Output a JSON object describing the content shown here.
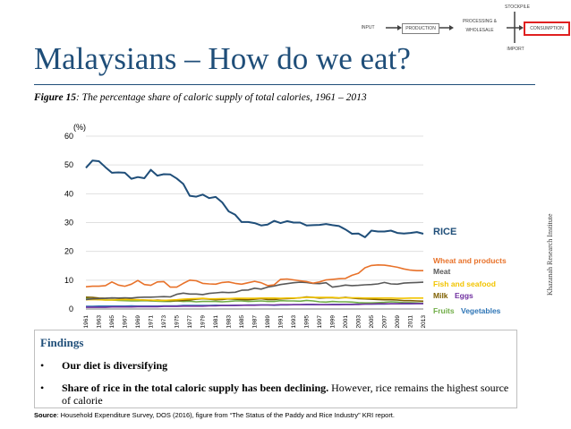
{
  "page": {
    "title": "Malaysians – How do we eat?",
    "figure_label": "Figure 15",
    "figure_caption": ": The percentage share of caloric supply of total calories, 1961 – 2013"
  },
  "flow": {
    "stockpile": "STOCKPILE",
    "input": "INPUT",
    "production": "PRODUCTION",
    "processing": "PROCESSING &",
    "wholesale": "WHOLESALE",
    "consumption": "CONSUMPTION",
    "import": "IMPORT",
    "highlight_color": "#e02020"
  },
  "chart_data": {
    "type": "line",
    "ylabel": "(%)",
    "ylim": [
      0,
      60
    ],
    "yticks": [
      0,
      10,
      20,
      30,
      40,
      50,
      60
    ],
    "xlim": [
      1961,
      2013
    ],
    "xticks": [
      1961,
      1963,
      1965,
      1967,
      1969,
      1971,
      1973,
      1975,
      1977,
      1979,
      1981,
      1983,
      1985,
      1987,
      1989,
      1991,
      1993,
      1995,
      1997,
      1999,
      2001,
      2003,
      2005,
      2007,
      2009,
      2011,
      2013
    ],
    "x": [
      1961,
      1962,
      1963,
      1964,
      1965,
      1966,
      1967,
      1968,
      1969,
      1970,
      1971,
      1972,
      1973,
      1974,
      1975,
      1976,
      1977,
      1978,
      1979,
      1980,
      1981,
      1982,
      1983,
      1984,
      1985,
      1986,
      1987,
      1988,
      1989,
      1990,
      1991,
      1992,
      1993,
      1994,
      1995,
      1996,
      1997,
      1998,
      1999,
      2000,
      2001,
      2002,
      2003,
      2004,
      2005,
      2006,
      2007,
      2008,
      2009,
      2010,
      2011,
      2012,
      2013
    ],
    "series": [
      {
        "name": "RICE",
        "color": "#1f4e79",
        "values": [
          49,
          51.5,
          51.3,
          49.2,
          47.3,
          47.4,
          47.3,
          45.2,
          45.8,
          45.4,
          48.3,
          46.3,
          46.8,
          46.7,
          45.3,
          43.4,
          39.3,
          39,
          39.7,
          38.5,
          38.9,
          37,
          33.9,
          32.7,
          30.2,
          30.2,
          29.8,
          29,
          29.3,
          30.6,
          29.8,
          30.5,
          30,
          30,
          29,
          29.1,
          29.2,
          29.5,
          29.1,
          28.8,
          27.6,
          26.1,
          26.2,
          24.9,
          27.2,
          26.9,
          26.9,
          27.2,
          26.4,
          26.2,
          26.4,
          26.7,
          26.1
        ]
      },
      {
        "name": "Wheat and products",
        "color": "#e8722a",
        "values": [
          7.7,
          7.9,
          7.9,
          8.1,
          9.4,
          8.3,
          7.9,
          8.6,
          9.9,
          8.5,
          8.2,
          9.4,
          9.5,
          7.6,
          7.6,
          8.9,
          10,
          9.8,
          8.9,
          8.7,
          8.6,
          9.2,
          9.4,
          8.9,
          8.6,
          9.1,
          9.6,
          9.1,
          8.1,
          8.4,
          10.3,
          10.4,
          10.1,
          9.8,
          9.5,
          9,
          9.4,
          10.1,
          10.3,
          10.5,
          10.6,
          11.7,
          12.4,
          14.3,
          15.1,
          15.3,
          15.2,
          14.9,
          14.5,
          13.9,
          13.5,
          13.3,
          13.3
        ]
      },
      {
        "name": "Meat",
        "color": "#595959",
        "values": [
          3.3,
          3.5,
          3.6,
          3.7,
          3.9,
          3.8,
          3.9,
          3.8,
          4,
          4.1,
          4.1,
          4.2,
          4.3,
          4.2,
          5.1,
          5.5,
          5.2,
          5.2,
          5,
          5.4,
          5.6,
          5.8,
          5.7,
          5.8,
          6.5,
          6.6,
          7.2,
          6.9,
          7.6,
          8,
          8.5,
          8.8,
          9.1,
          9.3,
          9.2,
          8.9,
          8.8,
          9.1,
          7.6,
          7.9,
          8.3,
          8.1,
          8.2,
          8.4,
          8.5,
          8.7,
          9.2,
          8.7,
          8.6,
          9,
          9.1,
          9.2,
          9.3
        ]
      },
      {
        "name": "Fish and seafood",
        "color": "#f2c400",
        "values": [
          3.2,
          3.3,
          3.2,
          3.1,
          3.1,
          3.2,
          3.3,
          3.2,
          3.2,
          3.1,
          3.1,
          3,
          3,
          3.1,
          3.2,
          3.4,
          3.5,
          3.6,
          3.7,
          3.5,
          3.5,
          3.6,
          3.6,
          3.7,
          3.7,
          3.7,
          3.7,
          3.8,
          3.8,
          3.8,
          3.7,
          3.8,
          3.8,
          3.9,
          4,
          4,
          4,
          4,
          4,
          3.9,
          3.9,
          3.9,
          3.9,
          3.8,
          3.8,
          3.8,
          3.8,
          3.8,
          3.7,
          3.7,
          3.8,
          3.8,
          3.8
        ]
      },
      {
        "name": "Milk",
        "color": "#7f6000",
        "values": [
          4.1,
          4,
          3.8,
          3.7,
          3.8,
          3.7,
          3.4,
          3.3,
          3.2,
          3.1,
          3,
          3.1,
          3,
          2.9,
          2.9,
          3,
          3.1,
          3.4,
          3.6,
          3.4,
          3.2,
          3.3,
          3.5,
          3.4,
          3.3,
          3.2,
          3.4,
          3.6,
          3.3,
          3.3,
          3.5,
          3.6,
          3.7,
          3.9,
          4.2,
          4,
          3.8,
          3.9,
          3.9,
          3.8,
          4,
          3.8,
          3.6,
          3.5,
          3.4,
          3.3,
          3.2,
          3.2,
          3.1,
          2.9,
          2.9,
          2.8,
          2.7
        ]
      },
      {
        "name": "Eggs",
        "color": "#7030a0",
        "values": [
          0.6,
          0.6,
          0.6,
          0.6,
          0.7,
          0.7,
          0.7,
          0.7,
          0.8,
          0.8,
          0.8,
          0.8,
          0.9,
          0.9,
          0.9,
          1,
          1,
          1,
          1,
          1.1,
          1.1,
          1.2,
          1.2,
          1.2,
          1.3,
          1.3,
          1.3,
          1.4,
          1.4,
          1.4,
          1.5,
          1.5,
          1.5,
          1.5,
          1.6,
          1.6,
          1.5,
          1.5,
          1.5,
          1.5,
          1.6,
          1.6,
          1.6,
          1.7,
          1.7,
          1.8,
          1.8,
          1.8,
          1.8,
          1.9,
          1.9,
          1.9,
          1.9
        ]
      },
      {
        "name": "Fruits",
        "color": "#70ad47",
        "values": [
          3.7,
          3.4,
          3.3,
          3.1,
          3.1,
          3,
          2.9,
          2.8,
          2.8,
          2.9,
          2.8,
          2.7,
          2.6,
          2.6,
          2.8,
          2.6,
          2.7,
          2.5,
          2.6,
          2.6,
          2.6,
          2.5,
          2.6,
          2.8,
          2.8,
          2.6,
          2.7,
          2.8,
          2.6,
          2.6,
          2.9,
          2.8,
          2.8,
          2.7,
          3,
          2.8,
          2.5,
          2.4,
          2.6,
          2.5,
          2.5,
          2.4,
          2.2,
          2.1,
          2.1,
          2.2,
          2.3,
          2.5,
          2.4,
          2.2,
          2.2,
          2.1,
          2
        ]
      },
      {
        "name": "Vegetables",
        "color": "#2e75b6",
        "values": [
          0.9,
          0.9,
          1,
          1,
          1,
          1,
          1,
          1.1,
          1,
          1,
          1,
          1,
          1.1,
          1.1,
          1.1,
          1.2,
          1.2,
          1.2,
          1.2,
          1.2,
          1.3,
          1.2,
          1.2,
          1.3,
          1.3,
          1.4,
          1.4,
          1.4,
          1.4,
          1.3,
          1.4,
          1.4,
          1.5,
          1.5,
          1.5,
          1.5,
          1.5,
          1.5,
          1.6,
          1.6,
          1.6,
          1.6,
          1.7,
          1.7,
          1.7,
          1.7,
          1.7,
          1.8,
          1.8,
          1.8,
          1.8,
          1.9,
          1.9
        ]
      }
    ],
    "series_labels": {
      "RICE": "RICE",
      "wheat": "Wheat and products",
      "meat": "Meat",
      "fish": "Fish and seafood",
      "milk": "Milk",
      "eggs": "Eggs",
      "fruits": "Fruits",
      "vegetables": "Vegetables"
    }
  },
  "findings": {
    "title": "Findings",
    "bullet_char": "•",
    "b1_bold": "Our diet is diversifying",
    "b2_bold": "Share of rice in the total caloric supply has been declining.",
    "b2_rest": " However, rice remains the highest source of calorie"
  },
  "source": {
    "label": "Source",
    "text": ": Household Expenditure Survey, DOS (2016), figure from “The Status of the Paddy and Rice Industry” KRI report."
  },
  "side_credit": "Khazanah Research Institute"
}
